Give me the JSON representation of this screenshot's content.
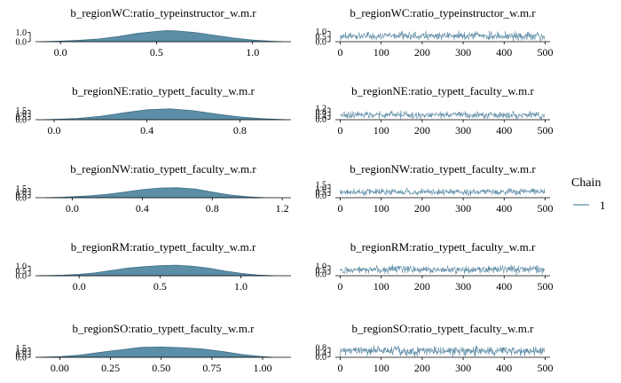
{
  "legend": {
    "title": "Chain",
    "items": [
      {
        "label": "1",
        "color": "#5a89a4"
      }
    ],
    "position": "right"
  },
  "colors": {
    "fill": "#5d8ea8",
    "line": "#5a89a4",
    "axis": "#000000",
    "text": "#000000"
  },
  "chart_data": [
    {
      "type": "area",
      "title": "b_regionWC:ratio_typeinstructor_w.m.r",
      "xticks": [
        0.0,
        0.5,
        1.0
      ],
      "xtick_labels": [
        "0.0",
        "0.5",
        "1.0"
      ],
      "xlim": [
        -0.13,
        1.2
      ],
      "yticks": [
        0.0,
        1.0
      ],
      "ytick_labels": [
        "0.0",
        "1.0"
      ],
      "ylim": [
        0,
        1.35
      ],
      "x": [
        -0.1,
        0.0,
        0.1,
        0.2,
        0.3,
        0.4,
        0.5,
        0.55,
        0.6,
        0.7,
        0.8,
        0.9,
        1.0,
        1.1,
        1.15
      ],
      "y": [
        0.0,
        0.06,
        0.15,
        0.3,
        0.55,
        0.9,
        1.12,
        1.2,
        1.18,
        1.0,
        0.7,
        0.4,
        0.18,
        0.05,
        0.0
      ]
    },
    {
      "type": "line",
      "title": "b_regionWC:ratio_typeinstructor_w.m.r",
      "xticks": [
        0,
        100,
        200,
        300,
        400,
        500
      ],
      "xtick_labels": [
        "0",
        "100",
        "200",
        "300",
        "400",
        "500"
      ],
      "xlim": [
        -12,
        512
      ],
      "yticks": [
        0.0,
        0.5,
        1.0
      ],
      "ytick_labels": [
        "0.0",
        "0.5",
        "1.0"
      ],
      "ylim": [
        0.0,
        1.2
      ],
      "center": 0.55,
      "spread": 0.45,
      "n_iterations": 500,
      "chain": "1"
    },
    {
      "type": "area",
      "title": "b_regionNE:ratio_typett_faculty_w.m.r",
      "xticks": [
        0.0,
        0.4,
        0.8
      ],
      "xtick_labels": [
        "0.0",
        "0.4",
        "0.8"
      ],
      "xlim": [
        -0.08,
        1.02
      ],
      "yticks": [
        0.0,
        0.5,
        1.0,
        1.5
      ],
      "ytick_labels": [
        "0.0",
        "0.5",
        "1.0",
        "1.5"
      ],
      "ylim": [
        0,
        2.0
      ],
      "x": [
        -0.05,
        0.0,
        0.1,
        0.2,
        0.3,
        0.4,
        0.5,
        0.6,
        0.7,
        0.8,
        0.9,
        1.0
      ],
      "y": [
        0.0,
        0.05,
        0.2,
        0.55,
        1.1,
        1.6,
        1.75,
        1.45,
        0.9,
        0.45,
        0.15,
        0.0
      ]
    },
    {
      "type": "line",
      "title": "b_regionNE:ratio_typett_faculty_w.m.r",
      "xticks": [
        0,
        100,
        200,
        300,
        400,
        500
      ],
      "xtick_labels": [
        "0",
        "100",
        "200",
        "300",
        "400",
        "500"
      ],
      "xlim": [
        -12,
        512
      ],
      "yticks": [
        0.0,
        0.4,
        0.8,
        1.2
      ],
      "ytick_labels": [
        "0.0",
        "0.4",
        "0.8",
        "1.2"
      ],
      "ylim": [
        -0.05,
        1.3
      ],
      "center": 0.47,
      "spread": 0.42,
      "n_iterations": 500,
      "chain": "1"
    },
    {
      "type": "area",
      "title": "b_regionNW:ratio_typett_faculty_w.m.r",
      "xticks": [
        0.0,
        0.4,
        0.8,
        1.2
      ],
      "xtick_labels": [
        "0.0",
        "0.4",
        "0.8",
        "1.2"
      ],
      "xlim": [
        -0.21,
        1.25
      ],
      "yticks": [
        0.0,
        0.5,
        1.0,
        1.5
      ],
      "ytick_labels": [
        "0.0",
        "0.5",
        "1.0",
        "1.5"
      ],
      "ylim": [
        0,
        2.0
      ],
      "x": [
        -0.15,
        -0.05,
        0.1,
        0.2,
        0.3,
        0.4,
        0.5,
        0.6,
        0.7,
        0.8,
        0.9,
        1.0,
        1.1
      ],
      "y": [
        0.0,
        0.08,
        0.3,
        0.55,
        0.9,
        1.3,
        1.55,
        1.6,
        1.4,
        0.9,
        0.45,
        0.15,
        0.0
      ]
    },
    {
      "type": "line",
      "title": "b_regionNW:ratio_typett_faculty_w.m.r",
      "xticks": [
        0,
        100,
        200,
        300,
        400,
        500
      ],
      "xtick_labels": [
        "0",
        "100",
        "200",
        "300",
        "400",
        "500"
      ],
      "xlim": [
        -12,
        512
      ],
      "yticks": [
        0.0,
        0.5,
        1.0,
        1.5
      ],
      "ytick_labels": [
        "0.0",
        "0.5",
        "1.0",
        "1.5"
      ],
      "ylim": [
        -0.3,
        1.4
      ],
      "center": 0.5,
      "spread": 0.5,
      "n_iterations": 500,
      "chain": "1"
    },
    {
      "type": "area",
      "title": "b_regionRM:ratio_typett_faculty_w.m.r",
      "xticks": [
        0.0,
        0.5,
        1.0
      ],
      "xtick_labels": [
        "0.0",
        "0.5",
        "1.0"
      ],
      "xlim": [
        -0.27,
        1.31
      ],
      "yticks": [
        0.0,
        0.5,
        1.0
      ],
      "ytick_labels": [
        "0.0",
        "0.5",
        "1.0"
      ],
      "ylim": [
        0,
        1.3
      ],
      "x": [
        -0.25,
        -0.1,
        0.0,
        0.1,
        0.2,
        0.3,
        0.4,
        0.5,
        0.6,
        0.7,
        0.8,
        0.9,
        1.0,
        1.1,
        1.2
      ],
      "y": [
        0.0,
        0.06,
        0.15,
        0.3,
        0.55,
        0.8,
        0.95,
        1.05,
        1.1,
        1.0,
        0.8,
        0.5,
        0.25,
        0.08,
        0.0
      ]
    },
    {
      "type": "line",
      "title": "b_regionRM:ratio_typett_faculty_w.m.r",
      "xticks": [
        0,
        100,
        200,
        300,
        400,
        500
      ],
      "xtick_labels": [
        "0",
        "100",
        "200",
        "300",
        "400",
        "500"
      ],
      "xlim": [
        -12,
        512
      ],
      "yticks": [
        0.0,
        0.5,
        1.0
      ],
      "ytick_labels": [
        "0.0",
        "0.5",
        "1.0"
      ],
      "ylim": [
        -0.2,
        1.3
      ],
      "center": 0.55,
      "spread": 0.55,
      "n_iterations": 500,
      "chain": "1"
    },
    {
      "type": "area",
      "title": "b_regionSO:ratio_typett_faculty_w.m.r",
      "xticks": [
        0.0,
        0.25,
        0.5,
        0.75,
        1.0
      ],
      "xtick_labels": [
        "0.00",
        "0.25",
        "0.50",
        "0.75",
        "1.00"
      ],
      "xlim": [
        -0.12,
        1.14
      ],
      "yticks": [
        0.0,
        0.5,
        1.0,
        1.5
      ],
      "ytick_labels": [
        "0.0",
        "0.5",
        "1.0",
        "1.5"
      ],
      "ylim": [
        0,
        2.0
      ],
      "x": [
        -0.1,
        0.0,
        0.1,
        0.2,
        0.3,
        0.4,
        0.5,
        0.6,
        0.7,
        0.8,
        0.9,
        1.0,
        1.05
      ],
      "y": [
        0.0,
        0.1,
        0.35,
        0.8,
        1.2,
        1.6,
        1.65,
        1.55,
        1.35,
        0.95,
        0.45,
        0.1,
        0.0
      ]
    },
    {
      "type": "line",
      "title": "b_regionSO:ratio_typett_faculty_w.m.r",
      "xticks": [
        0,
        100,
        200,
        300,
        400,
        500
      ],
      "xtick_labels": [
        "0",
        "100",
        "200",
        "300",
        "400",
        "500"
      ],
      "xlim": [
        -12,
        512
      ],
      "yticks": [
        0.0,
        0.4,
        0.8
      ],
      "ytick_labels": [
        "0.0",
        "0.4",
        "0.8"
      ],
      "ylim": [
        -0.05,
        1.05
      ],
      "center": 0.5,
      "spread": 0.45,
      "n_iterations": 500,
      "chain": "1"
    }
  ]
}
